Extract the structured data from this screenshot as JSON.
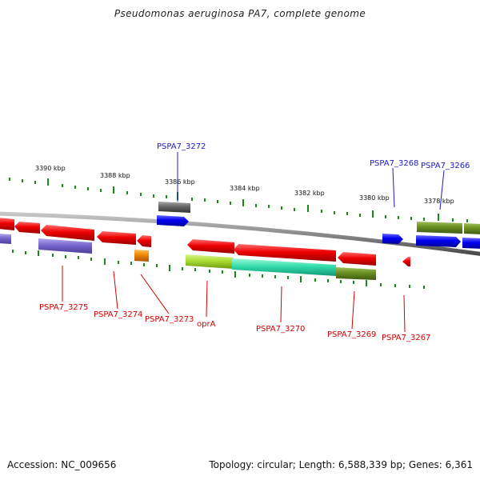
{
  "title": "Pseudomonas aeruginosa PA7, complete genome",
  "footer": {
    "accession": "Accession: NC_009656",
    "summary": "Topology: circular; Length: 6,588,339 bp; Genes: 6,361"
  },
  "scale_labels": [
    "3390 kbp",
    "3388 kbp",
    "3386 kbp",
    "3384 kbp",
    "3382 kbp",
    "3380 kbp",
    "3378 kbp"
  ],
  "gene_labels_top": [
    "PSPA7_3272",
    "PSPA7_3268",
    "PSPA7_3266"
  ],
  "gene_labels_bottom": [
    "PSPA7_3275",
    "PSPA7_3274",
    "PSPA7_3273",
    "oprA",
    "PSPA7_3270",
    "PSPA7_3269",
    "PSPA7_3267"
  ],
  "colors": {
    "forward_label": "#1a1acc",
    "reverse_label": "#d40000",
    "backbone": "#888888",
    "tick": "#1a8a1a",
    "red_gene": "#ee0000",
    "blue_gene": "#0000ee",
    "olive_gene": "#6b8e23",
    "teal_gene": "#33ddaa",
    "lime_gene": "#aadd33",
    "purple_gene": "#7766cc",
    "gray_gene": "#666666",
    "orange_gene": "#ee8800"
  }
}
